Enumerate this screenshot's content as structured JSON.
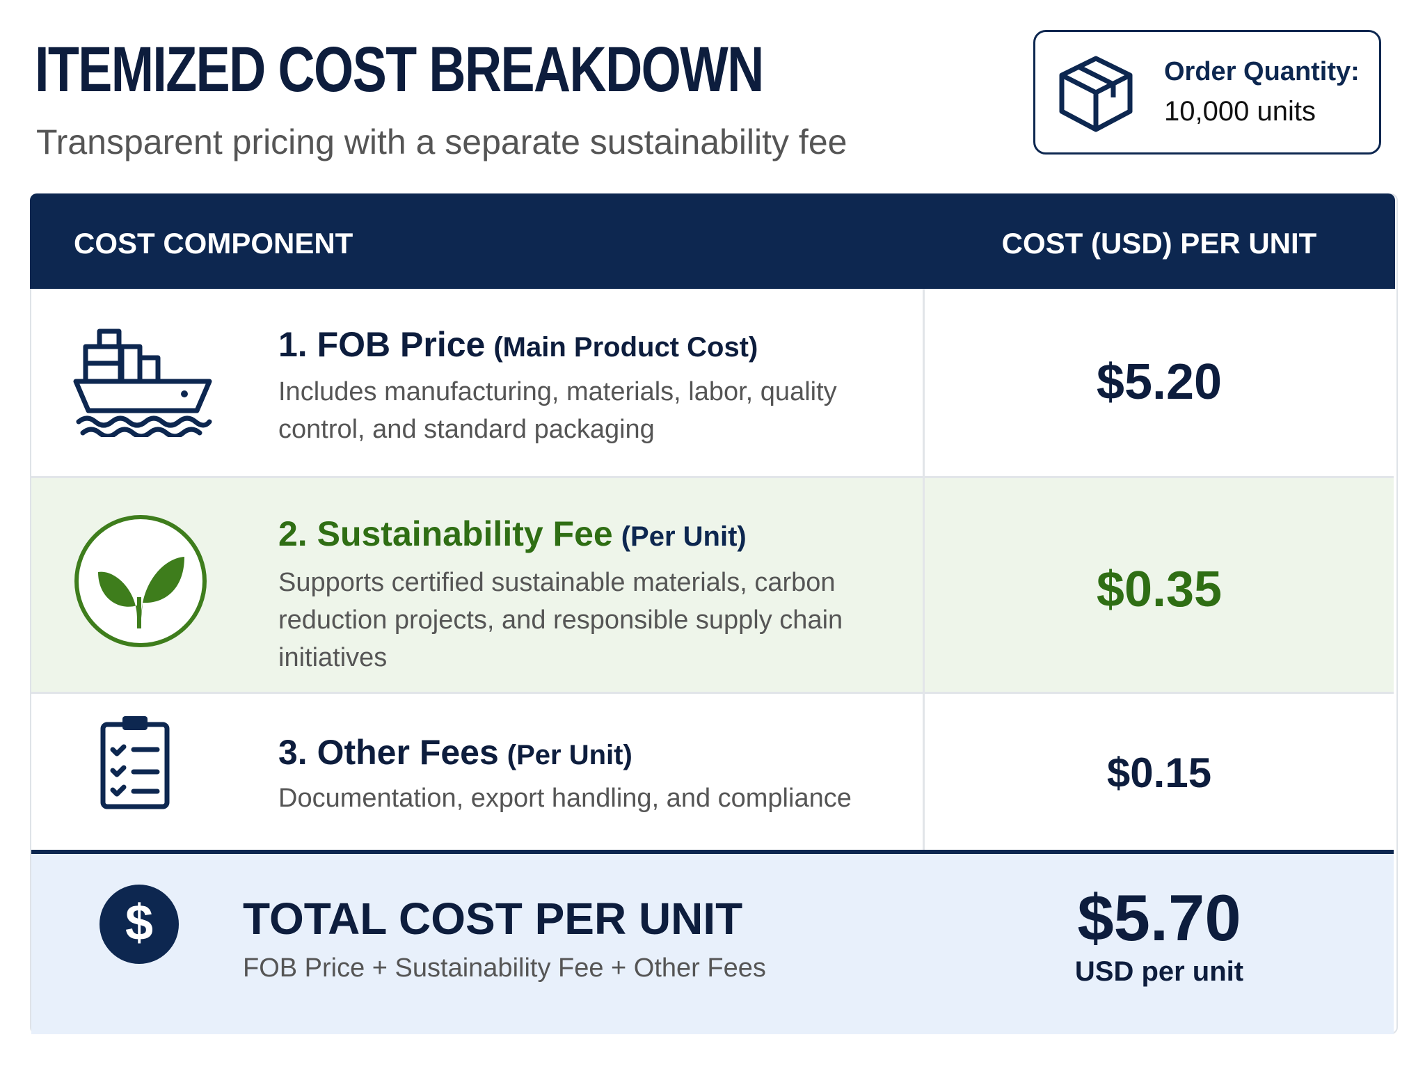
{
  "header": {
    "title": "ITEMIZED COST BREAKDOWN",
    "subtitle": "Transparent pricing with a separate sustainability fee"
  },
  "order": {
    "label": "Order Quantity:",
    "value": "10,000 units"
  },
  "table": {
    "columns": [
      "COST COMPONENT",
      "COST (USD) PER UNIT"
    ],
    "rows": [
      {
        "title": "1. FOB Price",
        "note": "(Main Product Cost)",
        "description": "Includes manufacturing, materials, labor, quality control, and standard packaging",
        "cost": "$5.20"
      },
      {
        "title": "2. Sustainability Fee",
        "note": "(Per Unit)",
        "description": "Supports certified sustainable materials, carbon reduction projects, and responsible supply chain initiatives",
        "cost": "$0.35"
      },
      {
        "title": "3. Other Fees",
        "note": "(Per Unit)",
        "description": "Documentation, export handling, and compliance",
        "cost": "$0.15"
      }
    ],
    "total": {
      "label": "TOTAL COST PER UNIT",
      "formula": "FOB Price + Sustainability Fee + Other Fees",
      "value": "$5.70",
      "unit": "USD per unit"
    }
  }
}
